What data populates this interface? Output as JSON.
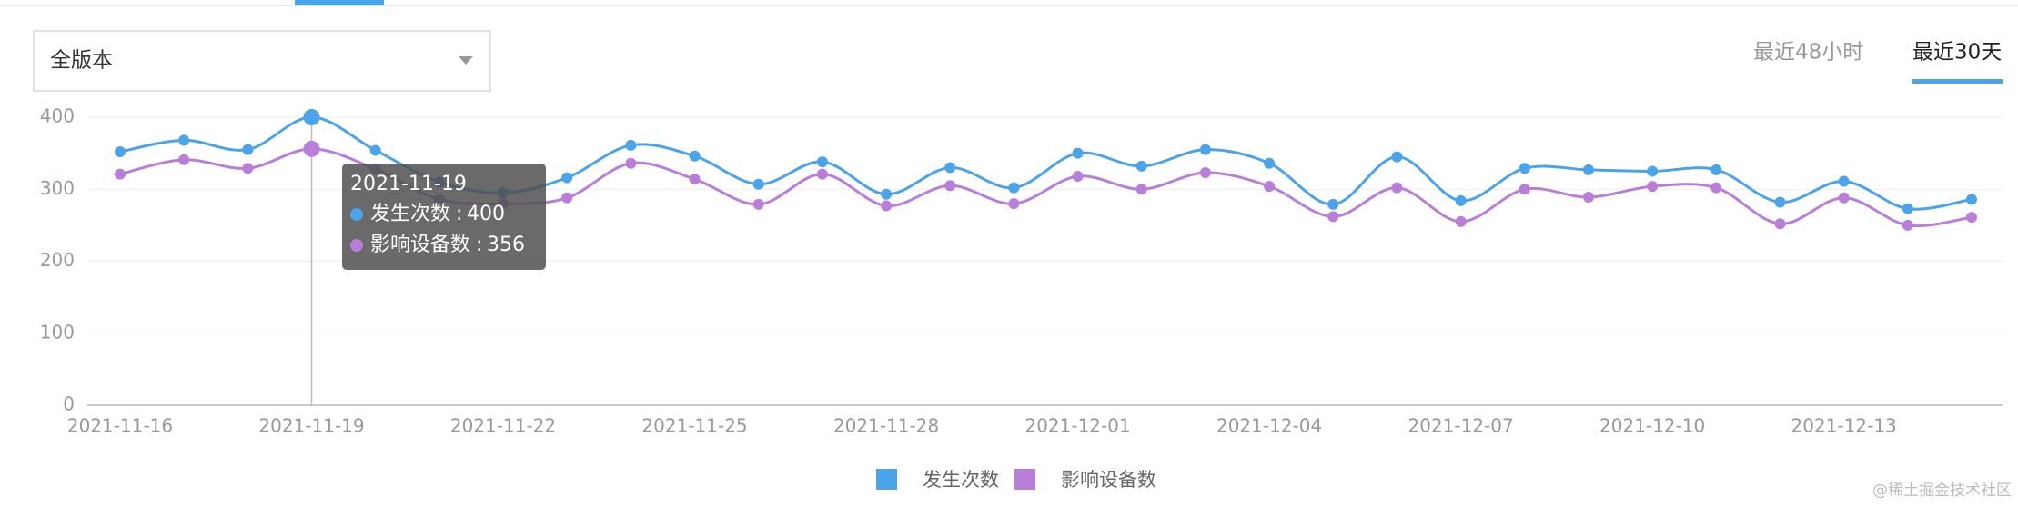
{
  "controls": {
    "version_select": "全版本",
    "tabs": [
      "最近48小时",
      "最近30天"
    ],
    "active_tab": 1
  },
  "chart_data": {
    "type": "line",
    "x": [
      "2021-11-16",
      null,
      null,
      "2021-11-19",
      null,
      null,
      "2021-11-22",
      null,
      null,
      "2021-11-25",
      null,
      null,
      "2021-11-28",
      null,
      null,
      "2021-12-01",
      null,
      null,
      "2021-12-04",
      null,
      null,
      "2021-12-07",
      null,
      null,
      "2021-12-10",
      null,
      null,
      "2021-12-13",
      null,
      null
    ],
    "series": [
      {
        "name": "发生次数",
        "color": "#4ba3ea",
        "values": [
          352,
          368,
          355,
          400,
          354,
          310,
          295,
          316,
          361,
          346,
          307,
          338,
          293,
          330,
          302,
          350,
          332,
          355,
          336,
          279,
          345,
          284,
          329,
          327,
          325,
          327,
          282,
          311,
          273,
          286
        ]
      },
      {
        "name": "影响设备数",
        "color": "#b97fd8",
        "values": [
          321,
          341,
          329,
          356,
          328,
          286,
          280,
          288,
          336,
          314,
          279,
          321,
          277,
          305,
          280,
          318,
          300,
          323,
          304,
          262,
          302,
          255,
          300,
          289,
          304,
          302,
          252,
          288,
          250,
          261
        ]
      }
    ],
    "ylim": [
      0,
      400
    ],
    "yticks": [
      0,
      100,
      200,
      300,
      400
    ],
    "grid": true,
    "smooth": true,
    "tooltip_index": 3,
    "legend": "bottom"
  },
  "watermark": "@稀土掘金技术社区"
}
